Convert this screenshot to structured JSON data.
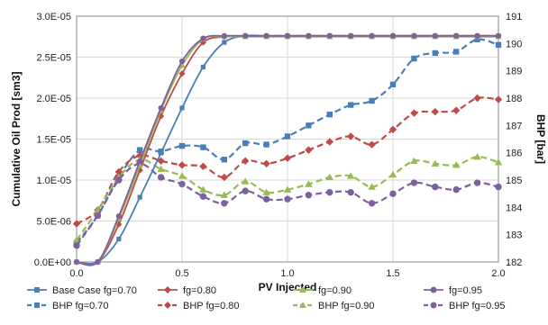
{
  "chart_data": {
    "type": "line",
    "xlabel": "PV Injected",
    "ylabel": "Cumulative Oil Prod [sm3]",
    "y2label": "BHP [bar]",
    "xlim": [
      0,
      2.0
    ],
    "ylim": [
      0,
      3e-05
    ],
    "y2lim": [
      182,
      191
    ],
    "x_ticks": [
      "0.0",
      "0.5",
      "1.0",
      "1.5",
      "2.0"
    ],
    "y_ticks": [
      "0.0E+00",
      "5.0E-06",
      "1.0E-05",
      "1.5E-05",
      "2.0E-05",
      "2.5E-05",
      "3.0E-05"
    ],
    "y2_ticks": [
      "182",
      "183",
      "184",
      "185",
      "186",
      "187",
      "188",
      "189",
      "190",
      "191"
    ],
    "grid": true,
    "legend_position": "bottom",
    "series": [
      {
        "name": "Base Case fg=0.70",
        "axis": "left",
        "color": "#4a7ebb",
        "marker": "square",
        "dash": "solid",
        "x": [
          0,
          0.1,
          0.2,
          0.3,
          0.4,
          0.5,
          0.6,
          0.7,
          0.8,
          0.9,
          1.0,
          1.1,
          1.2,
          1.3,
          1.4,
          1.5,
          1.6,
          1.7,
          1.8,
          1.9,
          2.0
        ],
        "values": [
          0,
          0,
          2.8e-06,
          7.9e-06,
          1.33e-05,
          1.88e-05,
          2.38e-05,
          2.68e-05,
          2.76e-05,
          2.76e-05,
          2.76e-05,
          2.76e-05,
          2.76e-05,
          2.76e-05,
          2.76e-05,
          2.76e-05,
          2.76e-05,
          2.76e-05,
          2.76e-05,
          2.76e-05,
          2.76e-05
        ]
      },
      {
        "name": "fg=0.80",
        "axis": "left",
        "color": "#be4b48",
        "marker": "diamond",
        "dash": "solid",
        "x": [
          0,
          0.1,
          0.2,
          0.3,
          0.4,
          0.5,
          0.6,
          0.7,
          0.8,
          0.9,
          1.0,
          1.1,
          1.2,
          1.3,
          1.4,
          1.5,
          1.6,
          1.7,
          1.8,
          1.9,
          2.0
        ],
        "values": [
          0,
          0,
          4.6e-06,
          1.12e-05,
          1.78e-05,
          2.3e-05,
          2.68e-05,
          2.75e-05,
          2.76e-05,
          2.76e-05,
          2.76e-05,
          2.76e-05,
          2.76e-05,
          2.76e-05,
          2.76e-05,
          2.76e-05,
          2.76e-05,
          2.76e-05,
          2.76e-05,
          2.76e-05,
          2.76e-05
        ]
      },
      {
        "name": "fg=0.90",
        "axis": "left",
        "color": "#98b954",
        "marker": "triangle",
        "dash": "solid",
        "x": [
          0,
          0.1,
          0.2,
          0.3,
          0.4,
          0.5,
          0.6,
          0.7,
          0.8,
          0.9,
          1.0,
          1.1,
          1.2,
          1.3,
          1.4,
          1.5,
          1.6,
          1.7,
          1.8,
          1.9,
          2.0
        ],
        "values": [
          0,
          0,
          5.3e-06,
          1.18e-05,
          1.85e-05,
          2.4e-05,
          2.72e-05,
          2.75e-05,
          2.75e-05,
          2.75e-05,
          2.75e-05,
          2.75e-05,
          2.75e-05,
          2.75e-05,
          2.75e-05,
          2.75e-05,
          2.75e-05,
          2.75e-05,
          2.75e-05,
          2.75e-05,
          2.75e-05
        ]
      },
      {
        "name": "fg=0.95",
        "axis": "left",
        "color": "#7d60a0",
        "marker": "circle",
        "dash": "solid",
        "x": [
          0,
          0.1,
          0.2,
          0.3,
          0.4,
          0.5,
          0.6,
          0.7,
          0.8,
          0.9,
          1.0,
          1.1,
          1.2,
          1.3,
          1.4,
          1.5,
          1.6,
          1.7,
          1.8,
          1.9,
          2.0
        ],
        "values": [
          0,
          0,
          5.6e-06,
          1.23e-05,
          1.88e-05,
          2.45e-05,
          2.73e-05,
          2.76e-05,
          2.76e-05,
          2.76e-05,
          2.76e-05,
          2.76e-05,
          2.76e-05,
          2.76e-05,
          2.76e-05,
          2.76e-05,
          2.76e-05,
          2.76e-05,
          2.76e-05,
          2.76e-05,
          2.76e-05
        ]
      },
      {
        "name": "BHP fg=0.70",
        "axis": "right",
        "color": "#4a7ebb",
        "marker": "square",
        "dash": "dashed",
        "x": [
          0,
          0.1,
          0.2,
          0.3,
          0.4,
          0.5,
          0.6,
          0.7,
          0.8,
          0.9,
          1.0,
          1.1,
          1.2,
          1.3,
          1.4,
          1.5,
          1.6,
          1.7,
          1.8,
          1.9,
          2.0
        ],
        "values": [
          182.7,
          183.7,
          185.1,
          186.1,
          186.05,
          186.25,
          186.2,
          185.75,
          186.35,
          186.3,
          186.6,
          187.0,
          187.4,
          187.75,
          187.9,
          188.5,
          189.45,
          189.65,
          189.7,
          190.15,
          189.95
        ]
      },
      {
        "name": "BHP fg=0.80",
        "axis": "right",
        "color": "#be4b48",
        "marker": "diamond",
        "dash": "dashed",
        "x": [
          0,
          0.1,
          0.2,
          0.3,
          0.4,
          0.5,
          0.6,
          0.7,
          0.8,
          0.9,
          1.0,
          1.1,
          1.2,
          1.3,
          1.4,
          1.5,
          1.6,
          1.7,
          1.8,
          1.9,
          2.0
        ],
        "values": [
          183.4,
          183.9,
          185.3,
          185.9,
          185.7,
          185.55,
          185.5,
          185.1,
          185.7,
          185.6,
          185.8,
          186.1,
          186.4,
          186.6,
          186.3,
          186.85,
          187.45,
          187.5,
          187.55,
          188.0,
          187.95
        ]
      },
      {
        "name": "BHP fg=0.90",
        "axis": "right",
        "color": "#98b954",
        "marker": "triangle",
        "dash": "dashed",
        "x": [
          0,
          0.1,
          0.2,
          0.3,
          0.4,
          0.5,
          0.6,
          0.7,
          0.8,
          0.9,
          1.0,
          1.1,
          1.2,
          1.3,
          1.4,
          1.5,
          1.6,
          1.7,
          1.8,
          1.9,
          2.0
        ],
        "values": [
          182.8,
          183.9,
          185.1,
          185.75,
          185.4,
          185.15,
          184.65,
          184.45,
          184.95,
          184.55,
          184.65,
          184.85,
          185.1,
          185.15,
          184.75,
          185.2,
          185.7,
          185.6,
          185.55,
          185.85,
          185.65
        ]
      },
      {
        "name": "BHP fg=0.95",
        "axis": "right",
        "color": "#7d60a0",
        "marker": "circle",
        "dash": "dashed",
        "x": [
          0,
          0.1,
          0.2,
          0.3,
          0.4,
          0.5,
          0.6,
          0.7,
          0.8,
          0.9,
          1.0,
          1.1,
          1.2,
          1.3,
          1.4,
          1.5,
          1.6,
          1.7,
          1.8,
          1.9,
          2.0
        ],
        "values": [
          182.6,
          183.7,
          185.0,
          185.6,
          185.1,
          184.85,
          184.4,
          184.15,
          184.6,
          184.3,
          184.3,
          184.45,
          184.55,
          184.55,
          184.15,
          184.5,
          184.9,
          184.75,
          184.65,
          184.9,
          184.75
        ]
      }
    ]
  }
}
